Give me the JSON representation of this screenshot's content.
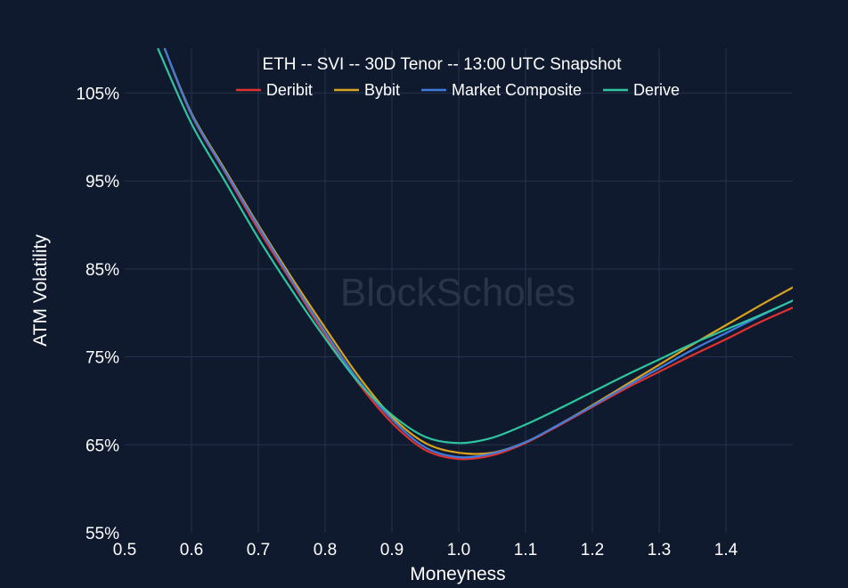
{
  "chart_data": {
    "type": "line",
    "title": "ETH -- SVI -- 30D Tenor -- 13:00 UTC Snapshot",
    "xlabel": "Moneyness",
    "ylabel": "ATM Volatility",
    "watermark": "BlockScholes",
    "xlim": [
      0.5,
      1.5
    ],
    "ylim": [
      55,
      110
    ],
    "x_ticks": [
      0.5,
      0.6,
      0.7,
      0.8,
      0.9,
      1.0,
      1.1,
      1.2,
      1.3,
      1.4
    ],
    "x_tick_labels": [
      "0.5",
      "0.6",
      "0.7",
      "0.8",
      "0.9",
      "1.0",
      "1.1",
      "1.2",
      "1.3",
      "1.4"
    ],
    "y_ticks": [
      55,
      65,
      75,
      85,
      95,
      105
    ],
    "y_tick_labels": [
      "55%",
      "65%",
      "75%",
      "85%",
      "95%",
      "105%"
    ],
    "grid": true,
    "legend_position": "top-center",
    "series": [
      {
        "name": "Deribit",
        "color": "#e0322f",
        "x": [
          0.56,
          0.6,
          0.65,
          0.7,
          0.75,
          0.8,
          0.85,
          0.9,
          0.95,
          1.0,
          1.05,
          1.1,
          1.15,
          1.2,
          1.25,
          1.3,
          1.35,
          1.4,
          1.45,
          1.5
        ],
        "y": [
          110,
          102.5,
          96,
          89.5,
          83.5,
          77.5,
          72,
          67.5,
          64.4,
          63.4,
          63.8,
          65.2,
          67.2,
          69.3,
          71.4,
          73.3,
          75.2,
          77.0,
          78.9,
          80.6
        ]
      },
      {
        "name": "Bybit",
        "color": "#d9a31d",
        "x": [
          0.56,
          0.6,
          0.65,
          0.7,
          0.75,
          0.8,
          0.85,
          0.9,
          0.95,
          1.0,
          1.05,
          1.1,
          1.15,
          1.2,
          1.25,
          1.3,
          1.35,
          1.4,
          1.45,
          1.5
        ],
        "y": [
          110,
          102.7,
          96.3,
          90,
          84,
          78.3,
          72.8,
          68.2,
          65.2,
          64.1,
          64.1,
          65.3,
          67.3,
          69.5,
          71.8,
          74.1,
          76.4,
          78.6,
          80.8,
          82.9
        ]
      },
      {
        "name": "Market Composite",
        "color": "#3d7be0",
        "x": [
          0.56,
          0.6,
          0.65,
          0.7,
          0.75,
          0.8,
          0.85,
          0.9,
          0.95,
          1.0,
          1.05,
          1.1,
          1.15,
          1.2,
          1.25,
          1.3,
          1.35,
          1.4,
          1.45,
          1.5
        ],
        "y": [
          110,
          102.6,
          96.1,
          89.8,
          83.7,
          77.8,
          72.3,
          67.9,
          64.7,
          63.6,
          64.0,
          65.3,
          67.3,
          69.4,
          71.6,
          73.7,
          75.8,
          77.7,
          79.6,
          81.4
        ]
      },
      {
        "name": "Derive",
        "color": "#2ec4a0",
        "x": [
          0.55,
          0.6,
          0.65,
          0.7,
          0.75,
          0.8,
          0.85,
          0.9,
          0.95,
          1.0,
          1.05,
          1.1,
          1.15,
          1.2,
          1.25,
          1.3,
          1.35,
          1.4,
          1.45,
          1.5
        ],
        "y": [
          110,
          101.5,
          95,
          88.5,
          82.6,
          77.1,
          72.1,
          68.4,
          65.9,
          65.2,
          65.8,
          67.3,
          69.1,
          71.0,
          72.9,
          74.7,
          76.5,
          78.1,
          79.7,
          81.4
        ]
      }
    ]
  }
}
